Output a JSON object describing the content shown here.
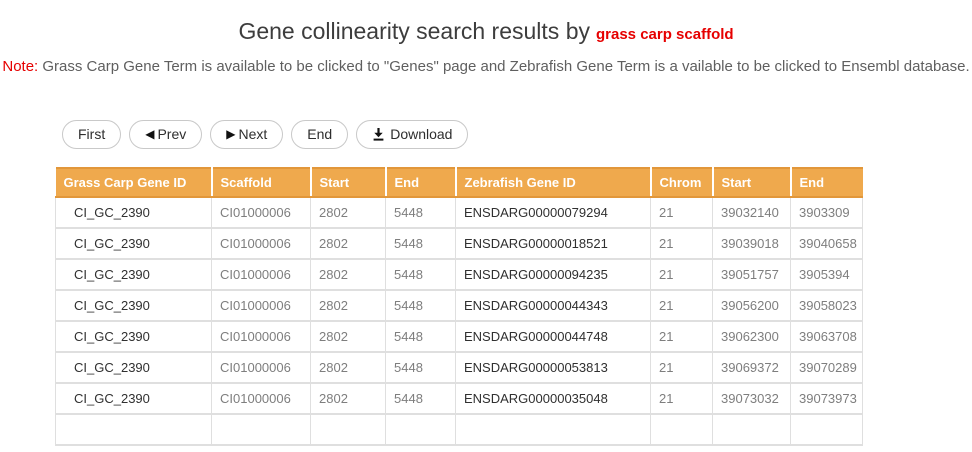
{
  "page": {
    "title_main": "Gene collinearity search results by",
    "title_accent": "grass carp scaffold",
    "note_label": "Note:",
    "note_text": " Grass Carp Gene Term is available to be clicked to \"Genes\" page and Zebrafish Gene Term is a vailable to be clicked to Ensembl database."
  },
  "toolbar": {
    "buttons": [
      {
        "id": "first",
        "label": "First",
        "icon": ""
      },
      {
        "id": "prev",
        "label": "Prev",
        "icon": "◀"
      },
      {
        "id": "next",
        "label": "Next",
        "icon": "▶"
      },
      {
        "id": "end",
        "label": "End",
        "icon": ""
      },
      {
        "id": "download",
        "label": "Download",
        "icon": "download-icon"
      }
    ]
  },
  "table": {
    "headers": [
      "Grass Carp Gene ID",
      "Scaffold",
      "Start",
      "End",
      "Zebrafish Gene ID",
      "Chrom",
      "Start",
      "End"
    ],
    "rows": [
      [
        "CI_GC_2390",
        "CI01000006",
        "2802",
        "5448",
        "ENSDARG00000079294",
        "21",
        "39032140",
        "3903309"
      ],
      [
        "CI_GC_2390",
        "CI01000006",
        "2802",
        "5448",
        "ENSDARG00000018521",
        "21",
        "39039018",
        "39040658"
      ],
      [
        "CI_GC_2390",
        "CI01000006",
        "2802",
        "5448",
        "ENSDARG00000094235",
        "21",
        "39051757",
        "3905394"
      ],
      [
        "CI_GC_2390",
        "CI01000006",
        "2802",
        "5448",
        "ENSDARG00000044343",
        "21",
        "39056200",
        "39058023"
      ],
      [
        "CI_GC_2390",
        "CI01000006",
        "2802",
        "5448",
        "ENSDARG00000044748",
        "21",
        "39062300",
        "39063708"
      ],
      [
        "CI_GC_2390",
        "CI01000006",
        "2802",
        "5448",
        "ENSDARG00000053813",
        "21",
        "39069372",
        "39070289"
      ],
      [
        "CI_GC_2390",
        "CI01000006",
        "2802",
        "5448",
        "ENSDARG00000035048",
        "21",
        "39073032",
        "39073973"
      ],
      [
        "",
        "",
        "",
        "",
        "",
        "",
        "",
        ""
      ]
    ]
  },
  "colors": {
    "accent_red": "#e60000",
    "header_orange": "#efa94d",
    "header_border_orange": "#e2973a",
    "grid_gray": "#dfdfdf"
  }
}
